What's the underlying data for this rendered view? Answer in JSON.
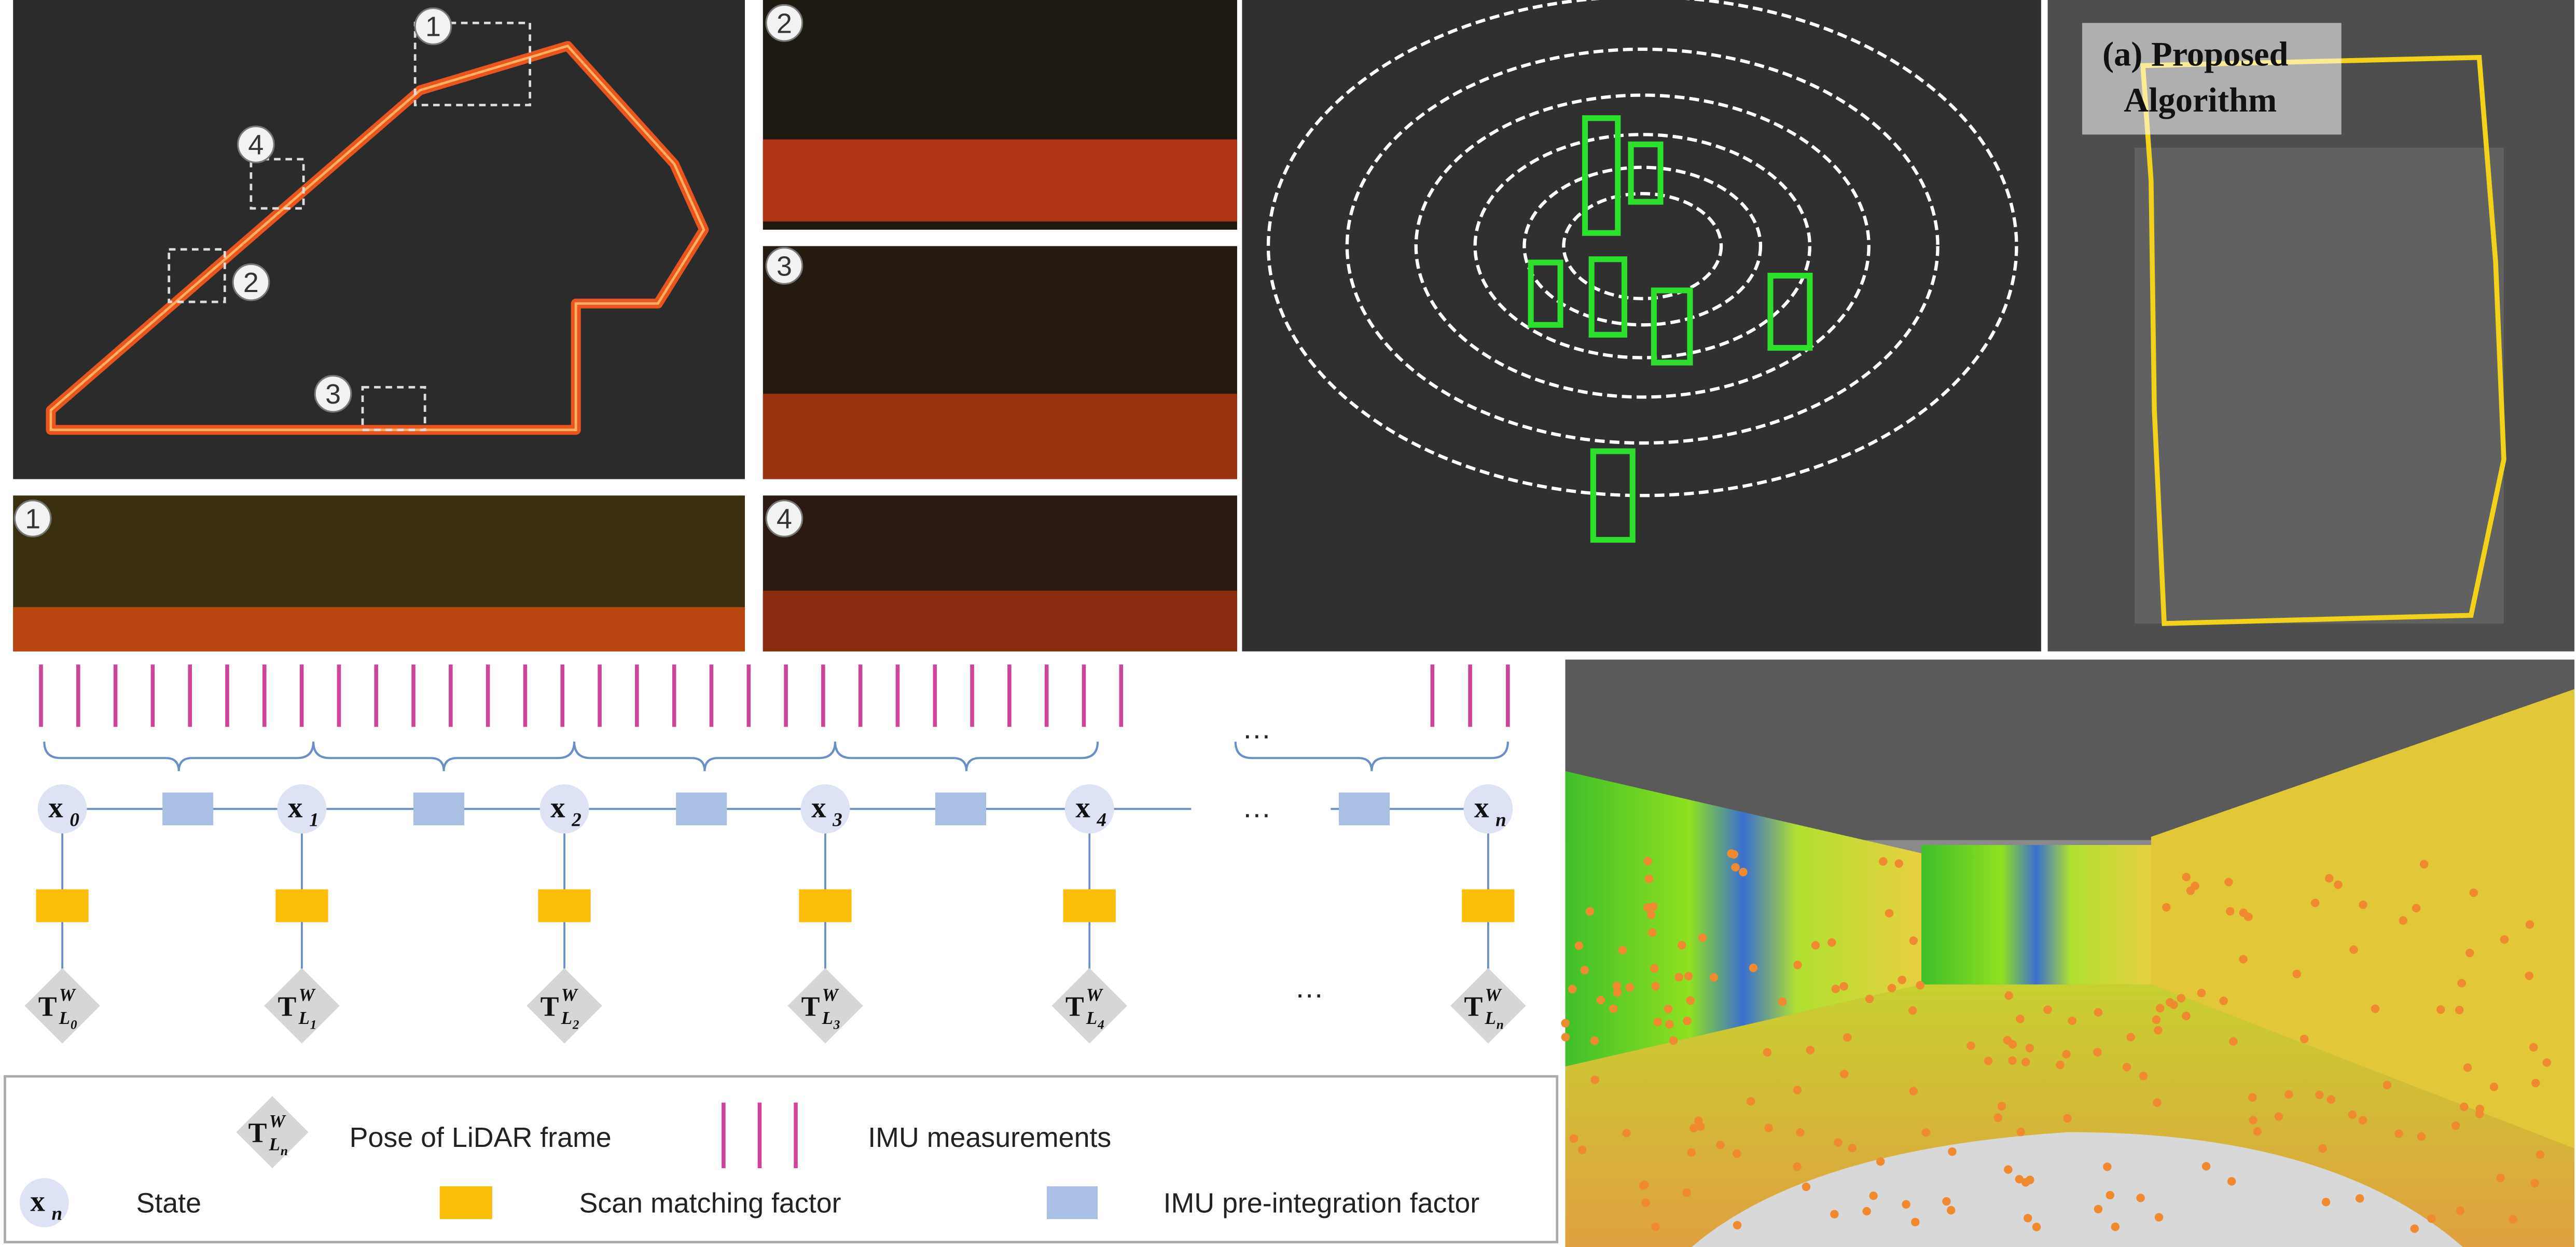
{
  "map_panel": {
    "markers": [
      "1",
      "4",
      "2",
      "3"
    ],
    "insets": [
      "1",
      "2",
      "3",
      "4"
    ]
  },
  "trajectory_panel": {
    "caption": [
      "(a) Proposed",
      "Algorithm"
    ]
  },
  "factor_graph": {
    "states": [
      {
        "symbol": "x",
        "subscript": "0"
      },
      {
        "symbol": "x",
        "subscript": "1"
      },
      {
        "symbol": "x",
        "subscript": "2"
      },
      {
        "symbol": "x",
        "subscript": "3"
      },
      {
        "symbol": "x",
        "subscript": "4"
      },
      {
        "symbol": "x",
        "subscript": "n"
      }
    ],
    "poses": [
      {
        "symbol": "T",
        "superscript": "W",
        "subscript": "L",
        "index": "0"
      },
      {
        "symbol": "T",
        "superscript": "W",
        "subscript": "L",
        "index": "1"
      },
      {
        "symbol": "T",
        "superscript": "W",
        "subscript": "L",
        "index": "2"
      },
      {
        "symbol": "T",
        "superscript": "W",
        "subscript": "L",
        "index": "3"
      },
      {
        "symbol": "T",
        "superscript": "W",
        "subscript": "L",
        "index": "4"
      },
      {
        "symbol": "T",
        "superscript": "W",
        "subscript": "L",
        "index": "n"
      }
    ],
    "ellipsis": [
      "…",
      "…",
      "…"
    ]
  },
  "legend": {
    "pose_symbol": {
      "symbol": "T",
      "superscript": "W",
      "subscript": "L",
      "index": "n"
    },
    "pose": "Pose of LiDAR frame",
    "imu": "IMU measurements",
    "state_symbol": {
      "symbol": "x",
      "subscript": "n"
    },
    "state": "State",
    "scan": "Scan matching factor",
    "preint": "IMU pre-integration factor"
  }
}
